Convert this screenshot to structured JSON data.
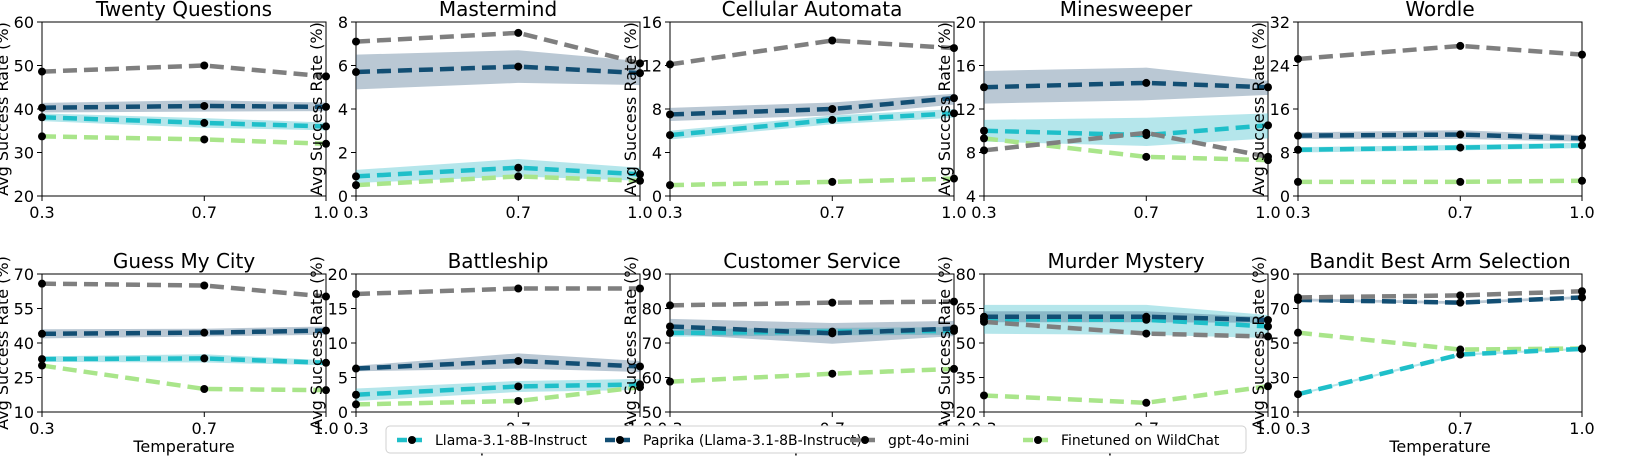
{
  "series": [
    {
      "name": "Llama-3.1-8B-Instruct",
      "color": "#1fbfc9",
      "band": "#2ab7c7"
    },
    {
      "name": "Paprika (Llama-3.1-8B-Instruct)",
      "color": "#124e73",
      "band": "#3a6185"
    },
    {
      "name": "gpt-4o-mini",
      "color": "#7f7f7f",
      "band": null
    },
    {
      "name": "Finetuned on WildChat",
      "color": "#a9e58a",
      "band": null
    }
  ],
  "chart_data": [
    {
      "type": "line",
      "title": "Twenty Questions",
      "x": [
        0.3,
        0.7,
        1.0
      ],
      "xticks": [
        "0.3",
        "0.7",
        "1.0"
      ],
      "xlabel": "",
      "ylabel": "Avg Success Rate (%)",
      "ylim": [
        20,
        60
      ],
      "yticks": [
        20,
        30,
        40,
        50,
        60
      ],
      "series": [
        {
          "name": "Llama-3.1-8B-Instruct",
          "values": [
            38.1,
            36.8,
            36.0
          ],
          "band": [
            [
              37.2,
              39.0
            ],
            [
              35.7,
              37.9
            ],
            [
              35.1,
              36.9
            ]
          ]
        },
        {
          "name": "Paprika (Llama-3.1-8B-Instruct)",
          "values": [
            40.3,
            40.7,
            40.5
          ],
          "band": [
            [
              39.2,
              41.4
            ],
            [
              39.4,
              42.0
            ],
            [
              39.5,
              41.5
            ]
          ]
        },
        {
          "name": "gpt-4o-mini",
          "values": [
            48.6,
            50.0,
            47.5
          ]
        },
        {
          "name": "Finetuned on WildChat",
          "values": [
            33.7,
            33.0,
            32.0
          ]
        }
      ]
    },
    {
      "type": "line",
      "title": "Mastermind",
      "x": [
        0.3,
        0.7,
        1.0
      ],
      "xticks": [
        "0.3",
        "0.7",
        "1.0"
      ],
      "xlabel": "",
      "ylabel": "Avg Success Rate (%)",
      "ylim": [
        0,
        8
      ],
      "yticks": [
        0,
        2,
        4,
        6,
        8
      ],
      "series": [
        {
          "name": "Llama-3.1-8B-Instruct",
          "values": [
            0.9,
            1.3,
            1.0
          ],
          "band": [
            [
              0.6,
              1.2
            ],
            [
              0.9,
              1.7
            ],
            [
              0.7,
              1.3
            ]
          ]
        },
        {
          "name": "Paprika (Llama-3.1-8B-Instruct)",
          "values": [
            5.7,
            5.95,
            5.65
          ],
          "band": [
            [
              4.9,
              6.5
            ],
            [
              5.2,
              6.7
            ],
            [
              5.1,
              6.2
            ]
          ]
        },
        {
          "name": "gpt-4o-mini",
          "values": [
            7.1,
            7.5,
            6.1
          ]
        },
        {
          "name": "Finetuned on WildChat",
          "values": [
            0.5,
            0.9,
            0.7
          ]
        }
      ]
    },
    {
      "type": "line",
      "title": "Cellular Automata",
      "x": [
        0.3,
        0.7,
        1.0
      ],
      "xticks": [
        "0.3",
        "0.7",
        "1.0"
      ],
      "xlabel": "",
      "ylabel": "Avg Success Rate (%)",
      "ylim": [
        0,
        16
      ],
      "yticks": [
        0,
        4,
        8,
        12,
        16
      ],
      "series": [
        {
          "name": "Llama-3.1-8B-Instruct",
          "values": [
            5.6,
            7.0,
            7.6
          ],
          "band": [
            [
              5.2,
              6.0
            ],
            [
              6.6,
              7.4
            ],
            [
              7.2,
              8.0
            ]
          ]
        },
        {
          "name": "Paprika (Llama-3.1-8B-Instruct)",
          "values": [
            7.5,
            8.0,
            9.0
          ],
          "band": [
            [
              6.9,
              8.1
            ],
            [
              7.4,
              8.6
            ],
            [
              8.4,
              9.4
            ]
          ]
        },
        {
          "name": "gpt-4o-mini",
          "values": [
            12.1,
            14.3,
            13.6
          ]
        },
        {
          "name": "Finetuned on WildChat",
          "values": [
            1.0,
            1.3,
            1.6
          ]
        }
      ]
    },
    {
      "type": "line",
      "title": "Minesweeper",
      "x": [
        0.3,
        0.7,
        1.0
      ],
      "xticks": [
        "0.3",
        "0.7",
        "1.0"
      ],
      "xlabel": "",
      "ylabel": "Avg Success Rate (%)",
      "ylim": [
        4,
        20
      ],
      "yticks": [
        4,
        8,
        12,
        16,
        20
      ],
      "series": [
        {
          "name": "Llama-3.1-8B-Instruct",
          "values": [
            10.0,
            9.6,
            10.5
          ],
          "band": [
            [
              9.0,
              11.0
            ],
            [
              8.6,
              11.2
            ],
            [
              9.3,
              11.6
            ]
          ]
        },
        {
          "name": "Paprika (Llama-3.1-8B-Instruct)",
          "values": [
            14.0,
            14.4,
            14.0
          ],
          "band": [
            [
              12.5,
              15.5
            ],
            [
              12.8,
              15.8
            ],
            [
              13.3,
              14.6
            ]
          ]
        },
        {
          "name": "gpt-4o-mini",
          "values": [
            8.2,
            9.8,
            7.6
          ]
        },
        {
          "name": "Finetuned on WildChat",
          "values": [
            9.3,
            7.6,
            7.3
          ]
        }
      ]
    },
    {
      "type": "line",
      "title": "Wordle",
      "x": [
        0.3,
        0.7,
        1.0
      ],
      "xticks": [
        "0.3",
        "0.7",
        "1.0"
      ],
      "xlabel": "",
      "ylabel": "Avg Success Rate (%)",
      "ylim": [
        0,
        32
      ],
      "yticks": [
        0,
        8,
        16,
        24,
        32
      ],
      "series": [
        {
          "name": "Llama-3.1-8B-Instruct",
          "values": [
            8.5,
            8.9,
            9.3
          ],
          "band": [
            [
              8.0,
              9.0
            ],
            [
              8.4,
              9.4
            ],
            [
              8.8,
              9.8
            ]
          ]
        },
        {
          "name": "Paprika (Llama-3.1-8B-Instruct)",
          "values": [
            11.1,
            11.3,
            10.6
          ],
          "band": [
            [
              10.5,
              11.7
            ],
            [
              10.5,
              12.1
            ],
            [
              10.0,
              11.2
            ]
          ]
        },
        {
          "name": "gpt-4o-mini",
          "values": [
            25.2,
            27.6,
            26.0
          ]
        },
        {
          "name": "Finetuned on WildChat",
          "values": [
            2.6,
            2.6,
            2.8
          ]
        }
      ]
    },
    {
      "type": "line",
      "title": "Guess My City",
      "x": [
        0.3,
        0.7,
        1.0
      ],
      "xticks": [
        "0.3",
        "0.7",
        "1.0"
      ],
      "xlabel": "Temperature",
      "ylabel": "Avg Success Rate (%)",
      "ylim": [
        10,
        70
      ],
      "yticks": [
        10,
        25,
        40,
        55,
        70
      ],
      "series": [
        {
          "name": "Llama-3.1-8B-Instruct",
          "values": [
            33.0,
            33.3,
            31.4
          ],
          "band": [
            [
              31.8,
              34.2
            ],
            [
              31.5,
              35.1
            ],
            [
              30.3,
              32.5
            ]
          ]
        },
        {
          "name": "Paprika (Llama-3.1-8B-Instruct)",
          "values": [
            44.0,
            44.5,
            45.4
          ],
          "band": [
            [
              42.0,
              46.0
            ],
            [
              42.8,
              46.2
            ],
            [
              43.6,
              47.2
            ]
          ]
        },
        {
          "name": "gpt-4o-mini",
          "values": [
            65.8,
            65.0,
            60.2
          ]
        },
        {
          "name": "Finetuned on WildChat",
          "values": [
            30.2,
            20.0,
            19.5
          ]
        }
      ]
    },
    {
      "type": "line",
      "title": "Battleship",
      "x": [
        0.3,
        0.7,
        1.0
      ],
      "xticks": [
        "0.3",
        "0.7",
        "1.0"
      ],
      "xlabel": "Temperature",
      "ylabel": "Avg Success Rate (%)",
      "ylim": [
        0,
        20
      ],
      "yticks": [
        0,
        5,
        10,
        15,
        20
      ],
      "series": [
        {
          "name": "Llama-3.1-8B-Instruct",
          "values": [
            2.5,
            3.7,
            4.0
          ],
          "band": [
            [
              1.6,
              3.4
            ],
            [
              2.9,
              4.5
            ],
            [
              3.2,
              4.8
            ]
          ]
        },
        {
          "name": "Paprika (Llama-3.1-8B-Instruct)",
          "values": [
            6.3,
            7.4,
            6.6
          ],
          "band": [
            [
              5.9,
              6.7
            ],
            [
              6.3,
              8.5
            ],
            [
              5.8,
              7.4
            ]
          ]
        },
        {
          "name": "gpt-4o-mini",
          "values": [
            17.1,
            17.9,
            17.9
          ]
        },
        {
          "name": "Finetuned on WildChat",
          "values": [
            1.1,
            1.6,
            3.6
          ]
        }
      ]
    },
    {
      "type": "line",
      "title": "Customer Service",
      "x": [
        0.3,
        0.7,
        1.0
      ],
      "xticks": [
        "0.3",
        "0.7",
        "1.0"
      ],
      "xlabel": "Temperature",
      "ylabel": "Avg Success Rate (%)",
      "ylim": [
        50,
        90
      ],
      "yticks": [
        50,
        60,
        70,
        80,
        90
      ],
      "series": [
        {
          "name": "Llama-3.1-8B-Instruct",
          "values": [
            72.9,
            73.3,
            73.5
          ],
          "band": [
            [
              71.8,
              74.0
            ],
            [
              72.2,
              74.4
            ],
            [
              72.4,
              74.6
            ]
          ]
        },
        {
          "name": "Paprika (Llama-3.1-8B-Instruct)",
          "values": [
            74.8,
            72.8,
            74.2
          ],
          "band": [
            [
              72.6,
              77.0
            ],
            [
              69.8,
              75.8
            ],
            [
              72.0,
              76.4
            ]
          ]
        },
        {
          "name": "gpt-4o-mini",
          "values": [
            80.9,
            81.7,
            82.0
          ]
        },
        {
          "name": "Finetuned on WildChat",
          "values": [
            58.8,
            61.1,
            62.5
          ]
        }
      ]
    },
    {
      "type": "line",
      "title": "Murder Mystery",
      "x": [
        0.3,
        0.7,
        1.0
      ],
      "xticks": [
        "0.3",
        "0.7",
        "1.0"
      ],
      "xlabel": "Temperature",
      "ylabel": "Avg Success Rate (%)",
      "ylim": [
        20,
        80
      ],
      "yticks": [
        20,
        35,
        50,
        65,
        80
      ],
      "series": [
        {
          "name": "Llama-3.1-8B-Instruct",
          "values": [
            60.3,
            60.1,
            57.2
          ],
          "band": [
            [
              54.0,
              66.6
            ],
            [
              53.6,
              66.6
            ],
            [
              52.2,
              62.2
            ]
          ]
        },
        {
          "name": "Paprika (Llama-3.1-8B-Instruct)",
          "values": [
            61.4,
            61.4,
            60.0
          ],
          "band": [
            [
              59.0,
              63.8
            ],
            [
              59.0,
              63.8
            ],
            [
              58.8,
              61.2
            ]
          ]
        },
        {
          "name": "gpt-4o-mini",
          "values": [
            59.2,
            54.1,
            52.8
          ]
        },
        {
          "name": "Finetuned on WildChat",
          "values": [
            27.2,
            24.0,
            31.2
          ]
        }
      ]
    },
    {
      "type": "line",
      "title": "Bandit Best Arm Selection",
      "x": [
        0.3,
        0.7,
        1.0
      ],
      "xticks": [
        "0.3",
        "0.7",
        "1.0"
      ],
      "xlabel": "Temperature",
      "ylabel": "Avg Success Rate (%)",
      "ylim": [
        10,
        90
      ],
      "yticks": [
        10,
        30,
        50,
        70,
        90
      ],
      "series": [
        {
          "name": "Llama-3.1-8B-Instruct",
          "values": [
            20.3,
            43.3,
            46.6
          ],
          "band": [
            [
              19.7,
              20.9
            ],
            [
              42.7,
              43.9
            ],
            [
              46.0,
              47.2
            ]
          ]
        },
        {
          "name": "Paprika (Llama-3.1-8B-Instruct)",
          "values": [
            75.0,
            73.4,
            76.4
          ],
          "band": [
            [
              74.2,
              75.8
            ],
            [
              72.6,
              74.2
            ],
            [
              75.6,
              77.2
            ]
          ]
        },
        {
          "name": "gpt-4o-mini",
          "values": [
            76.4,
            77.6,
            80.0
          ]
        },
        {
          "name": "Finetuned on WildChat",
          "values": [
            56.0,
            46.2,
            46.8
          ]
        }
      ]
    }
  ]
}
